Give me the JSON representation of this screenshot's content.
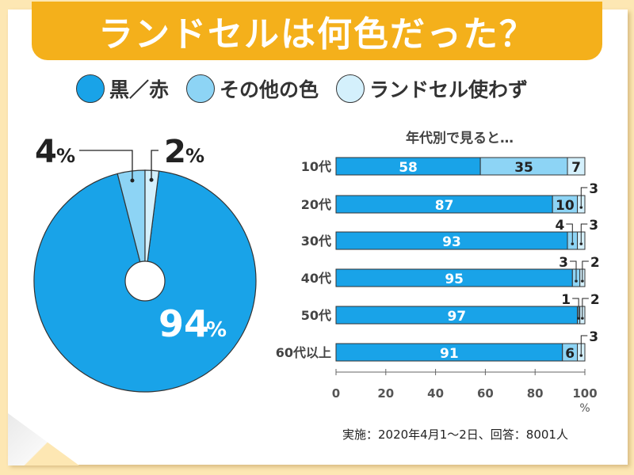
{
  "title": "ランドセルは何色だった？",
  "legend": [
    {
      "label": "黒／赤",
      "color": "#19a3e8"
    },
    {
      "label": "その他の色",
      "color": "#8dd4f5"
    },
    {
      "label": "ランドセル使わず",
      "color": "#d4f0fc"
    }
  ],
  "footnote": "実施：2020年4月1～2日、回答：8001人",
  "chart_data": [
    {
      "type": "pie",
      "labels": [
        "黒／赤",
        "その他の色",
        "ランドセル使わず"
      ],
      "values": [
        94,
        4,
        2
      ],
      "value_labels": [
        "94",
        "4",
        "2"
      ],
      "unit": "%"
    },
    {
      "type": "bar",
      "orientation": "horizontal",
      "stacked": true,
      "title": "年代別で見ると…",
      "categories": [
        "10代",
        "20代",
        "30代",
        "40代",
        "50代",
        "60代以上"
      ],
      "series": [
        {
          "name": "黒／赤",
          "values": [
            58,
            87,
            93,
            95,
            97,
            91
          ]
        },
        {
          "name": "その他の色",
          "values": [
            35,
            10,
            4,
            3,
            1,
            6
          ]
        },
        {
          "name": "ランドセル使わず",
          "values": [
            7,
            3,
            3,
            2,
            2,
            3
          ]
        }
      ],
      "xlim": [
        0,
        100
      ],
      "xticks": [
        "0",
        "20",
        "40",
        "60",
        "80",
        "100"
      ],
      "xunit": "%"
    }
  ]
}
